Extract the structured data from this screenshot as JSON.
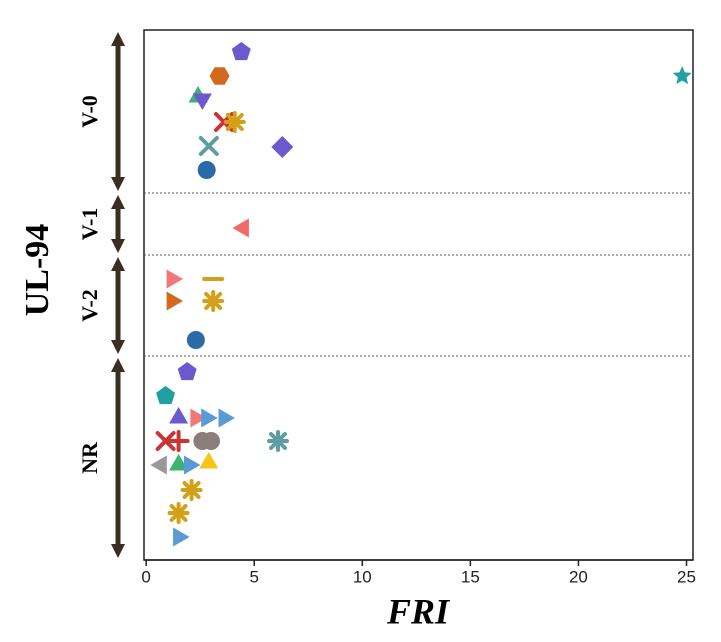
{
  "chart_data": {
    "type": "scatter",
    "xlabel": "FRI",
    "ylabel": "UL-94",
    "categories": [
      "V-0",
      "V-1",
      "V-2",
      "NR"
    ],
    "xlim": [
      -0.1,
      25.3
    ],
    "xticks": [
      0,
      5,
      10,
      15,
      20,
      25
    ],
    "series": [
      {
        "x": [
          4.4,
          3.4,
          24.8,
          2.4,
          2.6,
          3.6,
          4.1,
          2.9,
          6.3,
          2.8
        ],
        "markers": [
          "pentagon",
          "hexagon",
          "star",
          "triangle-up",
          "triangle-down",
          "x",
          "asterisk",
          "x",
          "diamond",
          "circle"
        ],
        "colors": [
          "#6a5acd",
          "#d2691e",
          "#20a0a0",
          "#3cb371",
          "#6a5acd",
          "#cc3333",
          "#d4a017",
          "#5f9ea0",
          "#6a5acd",
          "#2a6aa8"
        ]
      },
      {
        "x": [
          4.5
        ],
        "markers": [
          "triangle-left"
        ],
        "colors": [
          "#f06a6a"
        ]
      },
      {
        "x": [
          1.2,
          3.1,
          1.2,
          3.1,
          2.3
        ],
        "markers": [
          "triangle-right",
          "dash",
          "triangle-right",
          "asterisk",
          "circle"
        ],
        "colors": [
          "#f07a7a",
          "#d4a017",
          "#d2691e",
          "#d4a017",
          "#2a6aa8"
        ]
      },
      {
        "x": [
          1.9,
          0.9,
          1.5,
          2.3,
          2.8,
          3.6,
          0.9,
          1.5,
          2.6,
          3.0,
          6.1,
          0.7,
          1.5,
          2.9,
          2.0,
          2.1,
          1.5,
          1.5
        ],
        "markers": [
          "pentagon",
          "pentagon",
          "triangle-up",
          "triangle-right",
          "triangle-right",
          "triangle-right",
          "x",
          "plus",
          "circle",
          "circle",
          "asterisk",
          "triangle-left",
          "triangle-up",
          "triangle-up",
          "triangle-right",
          "asterisk",
          "asterisk",
          "triangle-right"
        ],
        "colors": [
          "#6a5acd",
          "#20a0a0",
          "#6a5acd",
          "#f07a7a",
          "#5b9bd5",
          "#5b9bd5",
          "#cc3333",
          "#cc3333",
          "#8b7d7b",
          "#8b7d7b",
          "#5f9ea0",
          "#999999",
          "#3cb371",
          "#f5c518",
          "#5b9bd5",
          "#d4a017",
          "#d4a017",
          "#5b9bd5"
        ]
      }
    ]
  }
}
